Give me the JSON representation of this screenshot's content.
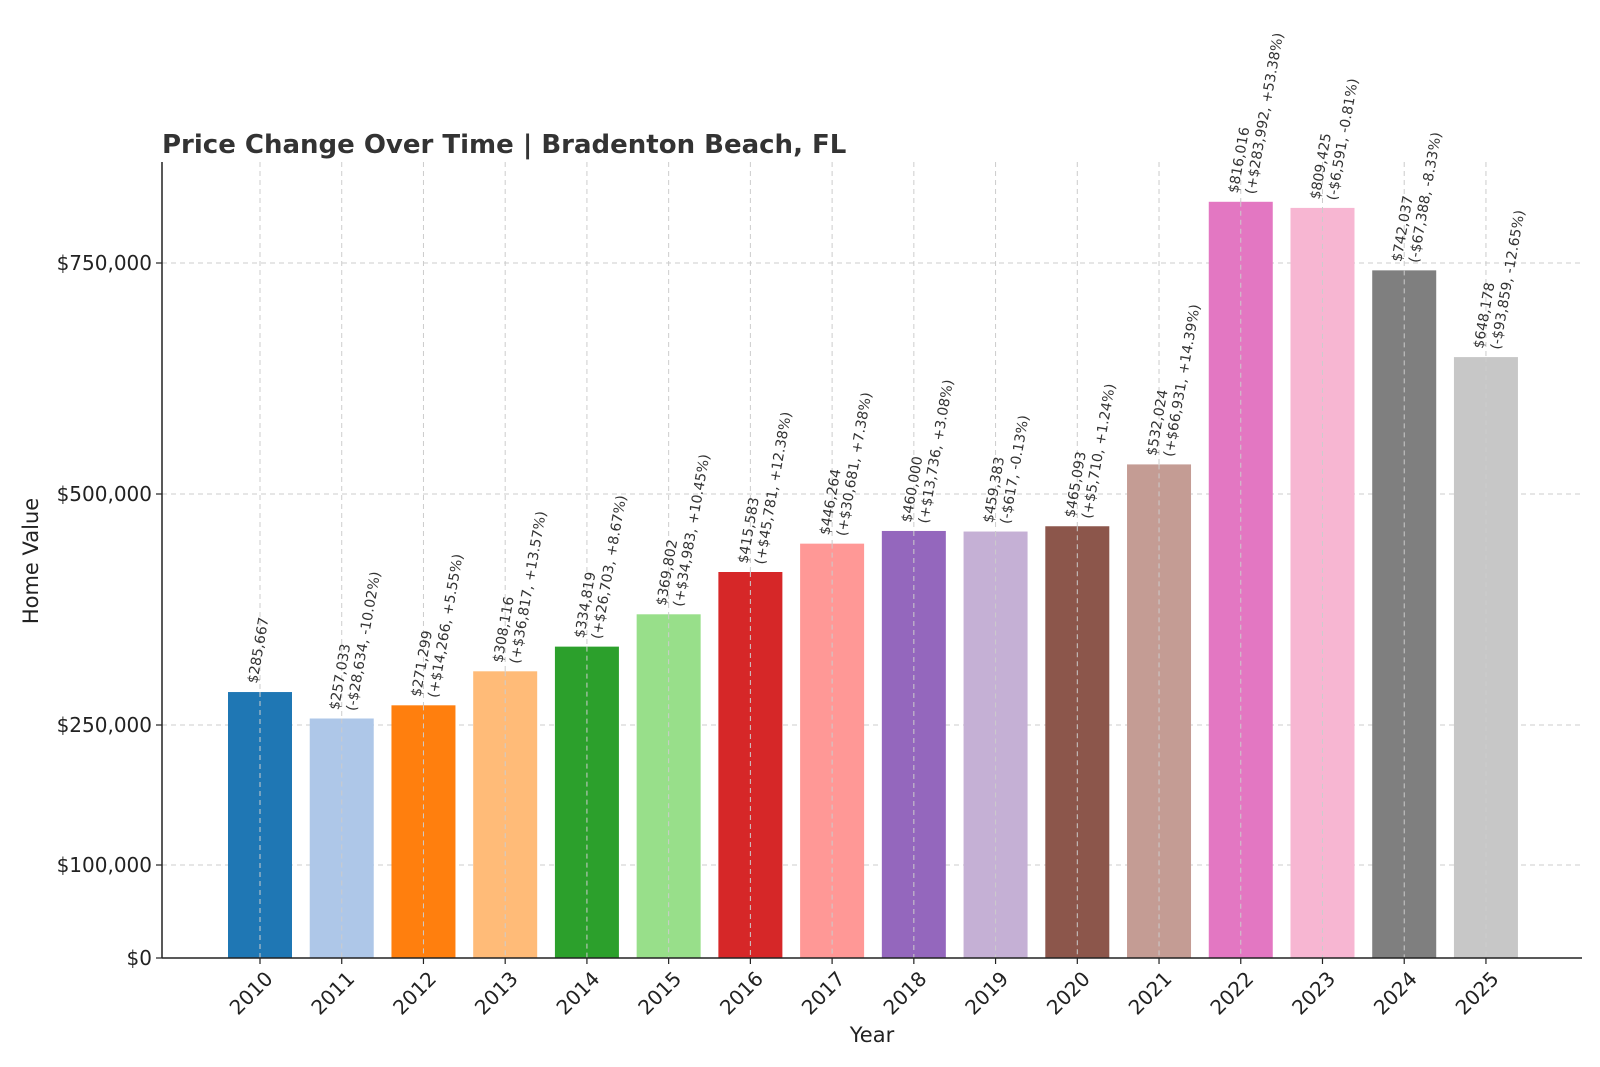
{
  "chart_data": {
    "type": "bar",
    "title": "Price Change Over Time | Bradenton Beach, FL",
    "xlabel": "Year",
    "ylabel": "Home Value",
    "ylim": [
      0,
      860000
    ],
    "grid": true,
    "yscale": "piecewise",
    "yticks": [
      {
        "value": 0,
        "label": "$0"
      },
      {
        "value": 100000,
        "label": "$100,000"
      },
      {
        "value": 250000,
        "label": "$250,000"
      },
      {
        "value": 500000,
        "label": "$500,000"
      },
      {
        "value": 750000,
        "label": "$750,000"
      }
    ],
    "categories": [
      "2010",
      "2011",
      "2012",
      "2013",
      "2014",
      "2015",
      "2016",
      "2017",
      "2018",
      "2019",
      "2020",
      "2021",
      "2022",
      "2023",
      "2024",
      "2025"
    ],
    "values": [
      285667,
      257033,
      271299,
      308116,
      334819,
      369802,
      415583,
      446264,
      460000,
      459383,
      465093,
      532024,
      816016,
      809425,
      742037,
      648178
    ],
    "value_labels": [
      "$285,667",
      "$257,033",
      "$271,299",
      "$308,116",
      "$334,819",
      "$369,802",
      "$415,583",
      "$446,264",
      "$460,000",
      "$459,383",
      "$465,093",
      "$532,024",
      "$816,016",
      "$809,425",
      "$742,037",
      "$648,178"
    ],
    "change_labels": [
      "",
      "(-$28,634, -10.02%)",
      "(+$14,266, +5.55%)",
      "(+$36,817, +13.57%)",
      "(+$26,703, +8.67%)",
      "(+$34,983, +10.45%)",
      "(+$45,781, +12.38%)",
      "(+$30,681, +7.38%)",
      "(+$13,736, +3.08%)",
      "(-$617, -0.13%)",
      "(+$5,710, +1.24%)",
      "(+$66,931, +14.39%)",
      "(+$283,992, +53.38%)",
      "(-$6,591, -0.81%)",
      "(-$67,388, -8.33%)",
      "(-$93,859, -12.65%)"
    ],
    "colors": [
      "#1f77b4",
      "#aec7e8",
      "#ff7f0e",
      "#ffbb78",
      "#2ca02c",
      "#98df8a",
      "#d62728",
      "#ff9896",
      "#9467bd",
      "#c5b0d5",
      "#8c564b",
      "#c49c94",
      "#e377c2",
      "#f7b6d2",
      "#7f7f7f",
      "#c7c7c7"
    ]
  }
}
